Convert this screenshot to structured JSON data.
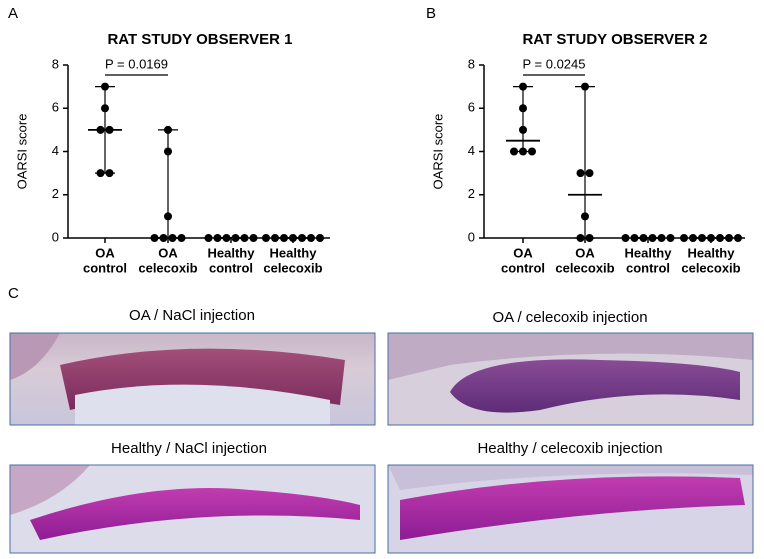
{
  "panel_labels": [
    "A",
    "B",
    "C"
  ],
  "chart_data": [
    {
      "type": "scatter",
      "title": "RAT STUDY OBSERVER 1",
      "ylabel": "OARSI score",
      "categories": [
        [
          "OA",
          "control"
        ],
        [
          "OA",
          "celecoxib"
        ],
        [
          "Healthy",
          "control"
        ],
        [
          "Healthy",
          "celecoxib"
        ]
      ],
      "values": [
        [
          7,
          6,
          5,
          5,
          3,
          3
        ],
        [
          5,
          4,
          1,
          0,
          0,
          0,
          0
        ],
        [
          0,
          0,
          0,
          0,
          0,
          0
        ],
        [
          0,
          0,
          0,
          0,
          0,
          0,
          0
        ]
      ],
      "medians": [
        5,
        0,
        0,
        0
      ],
      "ylim": [
        0,
        8
      ],
      "yticks": [
        0,
        2,
        4,
        6,
        8
      ],
      "color": "#000000",
      "annotation": "P = 0.0169"
    },
    {
      "type": "scatter",
      "title": "RAT STUDY OBSERVER 2",
      "ylabel": "OARSI score",
      "categories": [
        [
          "OA",
          "control"
        ],
        [
          "OA",
          "celecoxib"
        ],
        [
          "Healthy",
          "control"
        ],
        [
          "Healthy",
          "celecoxib"
        ]
      ],
      "values": [
        [
          7,
          6,
          5,
          4,
          4,
          4
        ],
        [
          7,
          3,
          3,
          1,
          0,
          0
        ],
        [
          0,
          0,
          0,
          0,
          0,
          0
        ],
        [
          0,
          0,
          0,
          0,
          0,
          0,
          0
        ]
      ],
      "medians": [
        4.5,
        2,
        0,
        0
      ],
      "ylim": [
        0,
        8
      ],
      "yticks": [
        0,
        2,
        4,
        6,
        8
      ],
      "color": "#000000",
      "annotation": "P = 0.0245"
    }
  ],
  "images": [
    {
      "caption": "OA / NaCl injection"
    },
    {
      "caption": "OA / celecoxib injection"
    },
    {
      "caption": "Healthy / NaCl injection"
    },
    {
      "caption": "Healthy / celecoxib injection"
    }
  ]
}
